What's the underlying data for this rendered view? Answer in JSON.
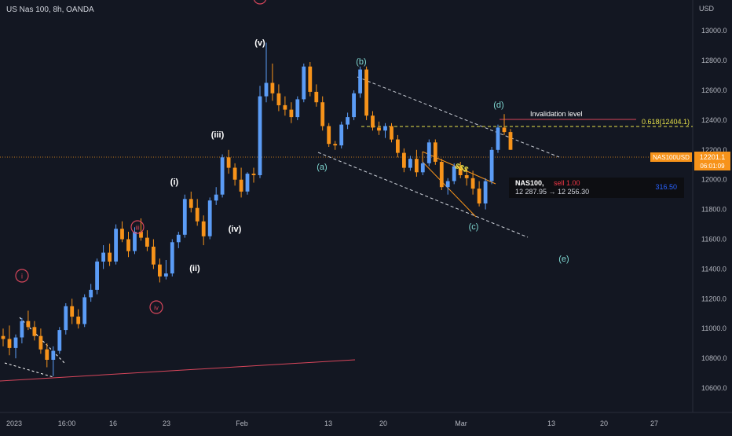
{
  "header": {
    "symbol": "US Nas 100, 8h, OANDA"
  },
  "price_axis": {
    "currency": "USD",
    "labels": [
      "13000.0",
      "12800.0",
      "12600.0",
      "12400.0",
      "12200.0",
      "12000.0",
      "11800.0",
      "11600.0",
      "11400.0",
      "11200.0",
      "11000.0",
      "10800.0",
      "10600.0"
    ]
  },
  "time_axis": {
    "labels": [
      {
        "x": "2023-01-01",
        "text": "2023"
      },
      {
        "x": "2023-01-09 16:00",
        "text": "16:00"
      },
      {
        "x": "2023-01-16",
        "text": "16"
      },
      {
        "x": "2023-01-23",
        "text": "23"
      },
      {
        "x": "2023-02-01",
        "text": "Feb"
      },
      {
        "x": "2023-02-13",
        "text": "13"
      },
      {
        "x": "2023-02-20",
        "text": "20"
      },
      {
        "x": "2023-03-01",
        "text": "Mar"
      },
      {
        "x": "2023-03-13",
        "text": "13"
      },
      {
        "x": "2023-03-20",
        "text": "20"
      },
      {
        "x": "2023-03-27",
        "text": "27"
      }
    ]
  },
  "last_price": {
    "symbol": "NAS100USD",
    "price": "12201.1",
    "countdown": "06:01:09",
    "color": "#f7931a"
  },
  "annotations": {
    "invalidation": "Invalidation level",
    "fib": "0.618(12404.1)",
    "liquidity": "$$$"
  },
  "wave_labels": {
    "i_circ": "i",
    "iii_circ": "iii",
    "iv_circ": "iv",
    "i": "(i)",
    "ii": "(ii)",
    "iii": "(iii)",
    "iv": "(iv)",
    "v": "(v)",
    "a": "(a)",
    "b": "(b)",
    "c": "(c)",
    "d": "(d)",
    "e": "(e)"
  },
  "order": {
    "symbol": "NAS100,",
    "side": "sell 1.00",
    "prices": "12 287.95 → 12 256.30",
    "pnl": "316.50"
  },
  "colors": {
    "background": "#131722",
    "up": "#5b9cf6",
    "down": "#f7931a",
    "text": "#d1d4dc",
    "teal": "#7fd8d2",
    "fib": "#e7e24a",
    "red": "#d8465b"
  },
  "chart_data": {
    "type": "candlestick",
    "title": "US Nas 100, 8h, OANDA",
    "yunit": "USD",
    "ylim": [
      10540,
      13170
    ],
    "grid": false,
    "candles": [
      [
        10950,
        11000,
        10880,
        10930
      ],
      [
        10930,
        11020,
        10820,
        10870
      ],
      [
        10870,
        10960,
        10800,
        10940
      ],
      [
        10940,
        11070,
        10900,
        11050
      ],
      [
        11050,
        11120,
        10990,
        11010
      ],
      [
        11010,
        11050,
        10920,
        10950
      ],
      [
        10950,
        11000,
        10830,
        10860
      ],
      [
        10860,
        10900,
        10740,
        10790
      ],
      [
        10790,
        10880,
        10680,
        10850
      ],
      [
        10850,
        11010,
        10830,
        10990
      ],
      [
        10990,
        11170,
        10960,
        11150
      ],
      [
        11150,
        11200,
        11030,
        11080
      ],
      [
        11080,
        11130,
        11000,
        11030
      ],
      [
        11030,
        11230,
        11010,
        11210
      ],
      [
        11210,
        11300,
        11180,
        11260
      ],
      [
        11260,
        11470,
        11230,
        11450
      ],
      [
        11450,
        11560,
        11400,
        11510
      ],
      [
        11510,
        11570,
        11420,
        11450
      ],
      [
        11450,
        11700,
        11430,
        11670
      ],
      [
        11670,
        11720,
        11580,
        11600
      ],
      [
        11600,
        11650,
        11480,
        11520
      ],
      [
        11520,
        11680,
        11500,
        11650
      ],
      [
        11650,
        11740,
        11590,
        11610
      ],
      [
        11610,
        11660,
        11520,
        11550
      ],
      [
        11550,
        11600,
        11400,
        11430
      ],
      [
        11430,
        11470,
        11310,
        11350
      ],
      [
        11350,
        11460,
        11330,
        11370
      ],
      [
        11370,
        11600,
        11350,
        11580
      ],
      [
        11580,
        11650,
        11540,
        11630
      ],
      [
        11630,
        11900,
        11610,
        11870
      ],
      [
        11870,
        11920,
        11780,
        11810
      ],
      [
        11810,
        11870,
        11690,
        11720
      ],
      [
        11720,
        11760,
        11560,
        11620
      ],
      [
        11620,
        11880,
        11600,
        11860
      ],
      [
        11860,
        11950,
        11830,
        11900
      ],
      [
        11900,
        12170,
        11880,
        12150
      ],
      [
        12150,
        12200,
        12040,
        12080
      ],
      [
        12080,
        12110,
        11960,
        12000
      ],
      [
        12000,
        12080,
        11880,
        11920
      ],
      [
        11920,
        12050,
        11900,
        12040
      ],
      [
        12040,
        12080,
        11980,
        12030
      ],
      [
        12030,
        12630,
        12010,
        12560
      ],
      [
        12560,
        12920,
        12520,
        12650
      ],
      [
        12650,
        12780,
        12530,
        12580
      ],
      [
        12580,
        12640,
        12460,
        12500
      ],
      [
        12500,
        12560,
        12430,
        12470
      ],
      [
        12470,
        12520,
        12380,
        12420
      ],
      [
        12420,
        12560,
        12400,
        12540
      ],
      [
        12540,
        12780,
        12520,
        12760
      ],
      [
        12760,
        12790,
        12560,
        12590
      ],
      [
        12590,
        12640,
        12490,
        12520
      ],
      [
        12520,
        12560,
        12330,
        12360
      ],
      [
        12360,
        12380,
        12220,
        12240
      ],
      [
        12240,
        12260,
        12200,
        12230
      ],
      [
        12230,
        12390,
        12210,
        12370
      ],
      [
        12370,
        12450,
        12340,
        12420
      ],
      [
        12420,
        12600,
        12400,
        12580
      ],
      [
        12580,
        12760,
        12550,
        12740
      ],
      [
        12740,
        12760,
        12400,
        12430
      ],
      [
        12430,
        12460,
        12330,
        12350
      ],
      [
        12350,
        12390,
        12300,
        12330
      ],
      [
        12330,
        12380,
        12280,
        12360
      ],
      [
        12360,
        12380,
        12250,
        12270
      ],
      [
        12270,
        12300,
        12150,
        12180
      ],
      [
        12180,
        12210,
        12050,
        12080
      ],
      [
        12080,
        12160,
        12060,
        12140
      ],
      [
        12140,
        12200,
        12020,
        12050
      ],
      [
        12050,
        12120,
        12030,
        12110
      ],
      [
        12110,
        12270,
        12090,
        12250
      ],
      [
        12250,
        12270,
        12100,
        12120
      ],
      [
        12120,
        12140,
        11930,
        11950
      ],
      [
        11950,
        12010,
        11900,
        11990
      ],
      [
        11990,
        12110,
        11970,
        12090
      ],
      [
        12090,
        12120,
        12010,
        12030
      ],
      [
        12030,
        12080,
        11960,
        12010
      ],
      [
        12010,
        12060,
        11900,
        11940
      ],
      [
        11940,
        11990,
        11820,
        11840
      ],
      [
        11840,
        12010,
        11800,
        11990
      ],
      [
        11990,
        12220,
        11970,
        12200
      ],
      [
        12200,
        12370,
        12180,
        12350
      ],
      [
        12350,
        12440,
        12300,
        12320
      ],
      [
        12320,
        12340,
        12200,
        12201
      ]
    ]
  }
}
